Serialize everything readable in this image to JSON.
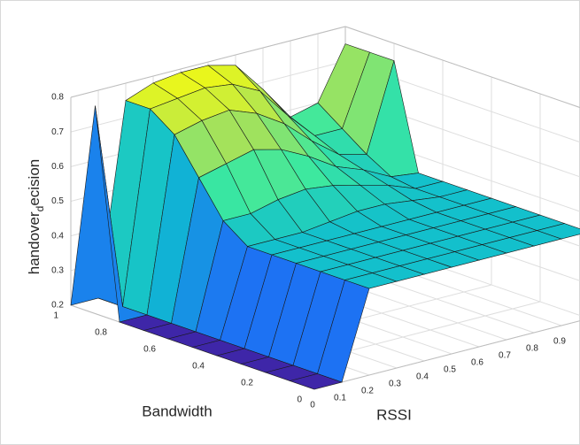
{
  "chart_data": {
    "type": "surface",
    "xlabel": "RSSI",
    "ylabel": "Bandwidth",
    "zlabel": [
      "handover",
      "d",
      "ecision"
    ],
    "x": [
      0,
      0.1,
      0.2,
      0.3,
      0.4,
      0.5,
      0.6,
      0.7,
      0.8,
      0.9,
      1
    ],
    "y": [
      0,
      0.1,
      0.2,
      0.3,
      0.4,
      0.5,
      0.6,
      0.7,
      0.8,
      0.9,
      1
    ],
    "z": [
      [
        0.2,
        0.2,
        0.45,
        0.45,
        0.45,
        0.45,
        0.45,
        0.45,
        0.45,
        0.45,
        0.45
      ],
      [
        0.2,
        0.2,
        0.45,
        0.45,
        0.45,
        0.45,
        0.45,
        0.45,
        0.45,
        0.45,
        0.45
      ],
      [
        0.2,
        0.2,
        0.45,
        0.45,
        0.45,
        0.45,
        0.45,
        0.45,
        0.45,
        0.45,
        0.45
      ],
      [
        0.2,
        0.2,
        0.45,
        0.45,
        0.45,
        0.45,
        0.45,
        0.45,
        0.45,
        0.45,
        0.45
      ],
      [
        0.2,
        0.2,
        0.45,
        0.45,
        0.45,
        0.45,
        0.45,
        0.45,
        0.45,
        0.45,
        0.45
      ],
      [
        0.2,
        0.2,
        0.45,
        0.45,
        0.45,
        0.46,
        0.47,
        0.47,
        0.46,
        0.45,
        0.45
      ],
      [
        0.2,
        0.2,
        0.5,
        0.5,
        0.52,
        0.53,
        0.52,
        0.5,
        0.48,
        0.45,
        0.45
      ],
      [
        0.2,
        0.2,
        0.6,
        0.62,
        0.64,
        0.62,
        0.58,
        0.53,
        0.5,
        0.46,
        0.45
      ],
      [
        0.2,
        0.2,
        0.7,
        0.72,
        0.73,
        0.7,
        0.65,
        0.58,
        0.52,
        0.5,
        0.75
      ],
      [
        0.8,
        0.2,
        0.75,
        0.76,
        0.77,
        0.76,
        0.72,
        0.63,
        0.55,
        0.55,
        0.75
      ],
      [
        0.2,
        0.2,
        0.75,
        0.78,
        0.79,
        0.79,
        0.77,
        0.68,
        0.58,
        0.6,
        0.75
      ]
    ],
    "xlim": [
      0,
      1
    ],
    "ylim": [
      0,
      1
    ],
    "zlim": [
      0.2,
      0.8
    ],
    "xticks": [
      0,
      0.1,
      0.2,
      0.3,
      0.4,
      0.5,
      0.6,
      0.7,
      0.8,
      0.9
    ],
    "yticks": [
      0,
      0.2,
      0.4,
      0.6,
      0.8,
      1
    ],
    "zticks": [
      0.2,
      0.3,
      0.4,
      0.5,
      0.6,
      0.7,
      0.8
    ],
    "grid": true,
    "colormap": [
      "#3e26a8",
      "#1e6ff5",
      "#0fbcd0",
      "#3be8a0",
      "#a6e25a",
      "#f9fb0e"
    ]
  }
}
